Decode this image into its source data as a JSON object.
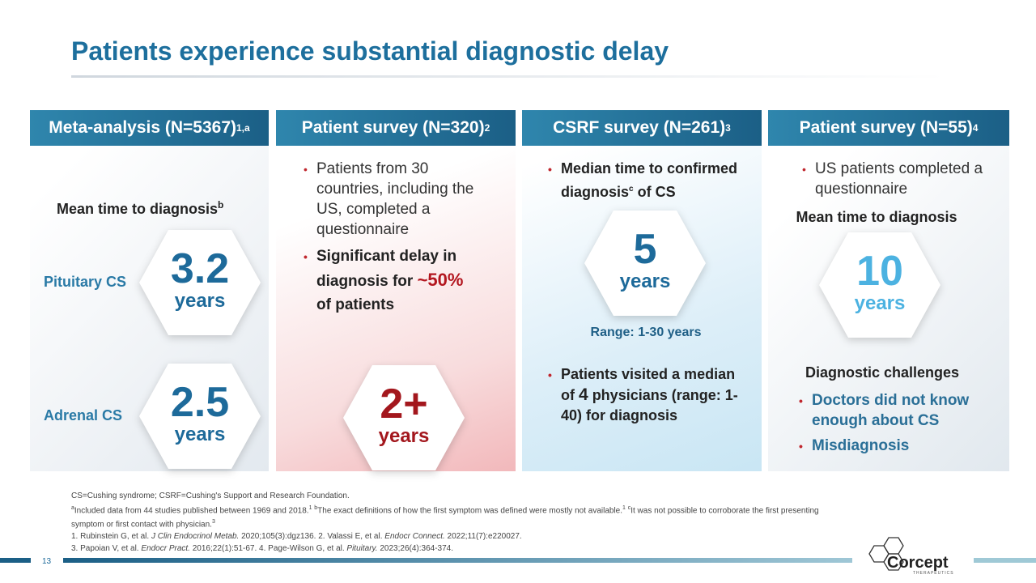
{
  "title": "Patients experience substantial diagnostic delay",
  "panels": [
    {
      "header": "Meta-analysis (N=5367)",
      "header_sup": "1,a",
      "subtitle": "Mean time to diagnosis",
      "subtitle_sup": "b",
      "stats": [
        {
          "label": "Pituitary CS",
          "value": "3.2",
          "unit": "years"
        },
        {
          "label": "Adrenal CS",
          "value": "2.5",
          "unit": "years"
        }
      ]
    },
    {
      "header": "Patient survey (N=320)",
      "header_sup": "2",
      "bullets": [
        "Patients from 30 countries, including the US, completed a questionnaire"
      ],
      "highlight_bullet": [
        "Significant delay in diagnosis for ",
        "~50%",
        " of patients"
      ],
      "stat": {
        "value": "2+",
        "unit": "years"
      }
    },
    {
      "header": "CSRF survey (N=261)",
      "header_sup": "3",
      "bullet_1": [
        "Median time to confirmed diagnosis",
        "c",
        " of CS"
      ],
      "stat": {
        "value": "5",
        "unit": "years"
      },
      "range": "Range: 1-30 years",
      "bullet_2": [
        "Patients visited a median of ",
        "4",
        " physicians (range: 1-40) for diagnosis"
      ]
    },
    {
      "header": "Patient survey (N=55)",
      "header_sup": "4",
      "bullets": [
        "US patients completed a questionnaire"
      ],
      "subtitle": "Mean time to diagnosis",
      "stat": {
        "value": "10",
        "unit": "years"
      },
      "challenges_title": "Diagnostic challenges",
      "challenges": [
        "Doctors did not know enough about CS",
        "Misdiagnosis"
      ]
    }
  ],
  "footnotes": {
    "abbreviations": "CS=Cushing syndrome; CSRF=Cushing's Support and Research Foundation.",
    "notes": [
      {
        "marker": "a",
        "text": "Included data from 44 studies published between 1969 and 2018.",
        "ref": "1"
      },
      {
        "marker": "b",
        "text": "The exact definitions of how the first symptom was defined were mostly not available.",
        "ref": "1"
      },
      {
        "marker": "c",
        "text": "It was not possible to corroborate the first presenting symptom or first contact with physician.",
        "ref": "3"
      }
    ],
    "references": [
      [
        "1. Rubinstein G, et al. ",
        "J Clin Endocrinol Metab.",
        " 2020;105(3):dgz136. 2. Valassi E, et al. ",
        "Endocr Connect.",
        " 2022;11(7):e220027."
      ],
      [
        "3. Papoian V, et al. ",
        "Endocr Pract.",
        " 2016;22(1):51-67. 4. Page-Wilson G, et al. ",
        "Pituitary.",
        " 2023;26(4):364-374."
      ]
    ]
  },
  "page_number": "13",
  "logo": {
    "name": "Corcept",
    "tagline": "THERAPEUTICS"
  }
}
